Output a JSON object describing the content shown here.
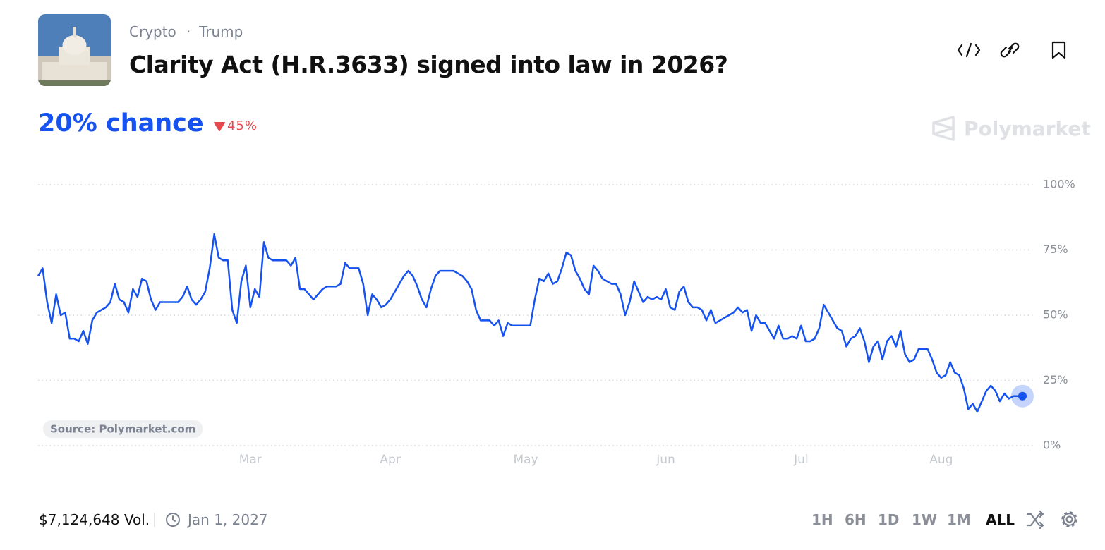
{
  "header": {
    "breadcrumb": [
      "Crypto",
      "Trump"
    ],
    "title": "Clarity Act (H.R.3633) signed into law in 2026?"
  },
  "odds": {
    "chance": "20% chance",
    "change": "45%"
  },
  "brand": "Polymarket",
  "footer": {
    "volume": "$7,124,648 Vol.",
    "end_date": "Jan 1, 2027",
    "ranges": [
      "1H",
      "6H",
      "1D",
      "1W",
      "1M",
      "ALL"
    ]
  },
  "chart_data": {
    "type": "line",
    "color": "#1652f0",
    "source": "Source: Polymarket.com",
    "categories": [
      null,
      null,
      null,
      null,
      null,
      null,
      null,
      null,
      null,
      null,
      null,
      null,
      null,
      null,
      null,
      null,
      null,
      null,
      null,
      null,
      null,
      null,
      null,
      null,
      null,
      null,
      null,
      null,
      null,
      null,
      null,
      null,
      null,
      null,
      null,
      null,
      null,
      null,
      null,
      null,
      null,
      null,
      null,
      null,
      null,
      null,
      null,
      "Mar",
      null,
      null,
      null,
      null,
      null,
      null,
      null,
      null,
      null,
      null,
      null,
      null,
      null,
      null,
      null,
      null,
      null,
      null,
      null,
      null,
      null,
      null,
      null,
      null,
      null,
      null,
      null,
      null,
      null,
      null,
      "Apr",
      null,
      null,
      null,
      null,
      null,
      null,
      null,
      null,
      null,
      null,
      null,
      null,
      null,
      null,
      null,
      null,
      null,
      null,
      null,
      null,
      null,
      null,
      null,
      null,
      null,
      null,
      null,
      null,
      null,
      "May",
      null,
      null,
      null,
      null,
      null,
      null,
      null,
      null,
      null,
      null,
      null,
      null,
      null,
      null,
      null,
      null,
      null,
      null,
      null,
      null,
      null,
      null,
      null,
      null,
      null,
      null,
      null,
      null,
      null,
      null,
      "Jun",
      null,
      null,
      null,
      null,
      null,
      null,
      null,
      null,
      null,
      null,
      null,
      null,
      null,
      null,
      null,
      null,
      null,
      null,
      null,
      null,
      null,
      null,
      null,
      null,
      null,
      null,
      null,
      null,
      null,
      "Jul",
      null,
      null,
      null,
      null,
      null,
      null,
      null,
      null,
      null,
      null,
      null,
      null,
      null,
      null,
      null,
      null,
      null,
      null,
      null,
      null,
      null,
      null,
      null,
      null,
      null,
      null,
      null,
      null,
      null,
      null,
      "Aug",
      null,
      null,
      null,
      null,
      null,
      null,
      null,
      null,
      null,
      null,
      null,
      null,
      null,
      null,
      null,
      null,
      null,
      null
    ],
    "values": [
      65,
      68,
      55,
      47,
      58,
      50,
      51,
      41,
      41,
      40,
      44,
      39,
      48,
      51,
      52,
      53,
      55,
      62,
      56,
      55,
      51,
      60,
      57,
      64,
      63,
      56,
      52,
      55,
      55,
      55,
      55,
      55,
      57,
      61,
      56,
      54,
      56,
      59,
      68,
      81,
      72,
      71,
      71,
      52,
      47,
      63,
      69,
      53,
      60,
      57,
      78,
      72,
      71,
      71,
      71,
      71,
      69,
      72,
      60,
      60,
      58,
      56,
      58,
      60,
      61,
      61,
      61,
      62,
      70,
      68,
      68,
      68,
      62,
      50,
      58,
      56,
      53,
      54,
      56,
      59,
      62,
      65,
      67,
      65,
      61,
      56,
      53,
      60,
      65,
      67,
      67,
      67,
      67,
      66,
      65,
      63,
      60,
      52,
      48,
      48,
      48,
      46,
      48,
      42,
      47,
      46,
      46,
      46,
      46,
      46,
      56,
      64,
      63,
      66,
      62,
      63,
      68,
      74,
      73,
      67,
      64,
      60,
      58,
      69,
      67,
      64,
      63,
      62,
      62,
      58,
      50,
      55,
      63,
      59,
      55,
      57,
      56,
      57,
      56,
      60,
      53,
      52,
      59,
      61,
      55,
      53,
      53,
      52,
      48,
      52,
      47,
      48,
      49,
      50,
      51,
      53,
      51,
      52,
      44,
      50,
      47,
      47,
      44,
      41,
      46,
      41,
      41,
      42,
      41,
      46,
      40,
      40,
      41,
      45,
      54,
      51,
      48,
      45,
      44,
      38,
      41,
      42,
      45,
      40,
      32,
      38,
      40,
      33,
      40,
      42,
      38,
      44,
      35,
      32,
      33,
      37,
      37,
      37,
      33,
      28,
      26,
      27,
      32,
      28,
      27,
      22,
      14,
      16,
      13,
      17,
      21,
      23,
      21,
      17,
      20,
      18,
      19,
      19,
      19
    ],
    "ylim": [
      0,
      100
    ],
    "yticks": [
      {
        "value": 0,
        "label": "0%"
      },
      {
        "value": 25,
        "label": "25%"
      },
      {
        "value": 50,
        "label": "50%"
      },
      {
        "value": 75,
        "label": "75%"
      },
      {
        "value": 100,
        "label": "100%"
      }
    ],
    "grid": true
  }
}
